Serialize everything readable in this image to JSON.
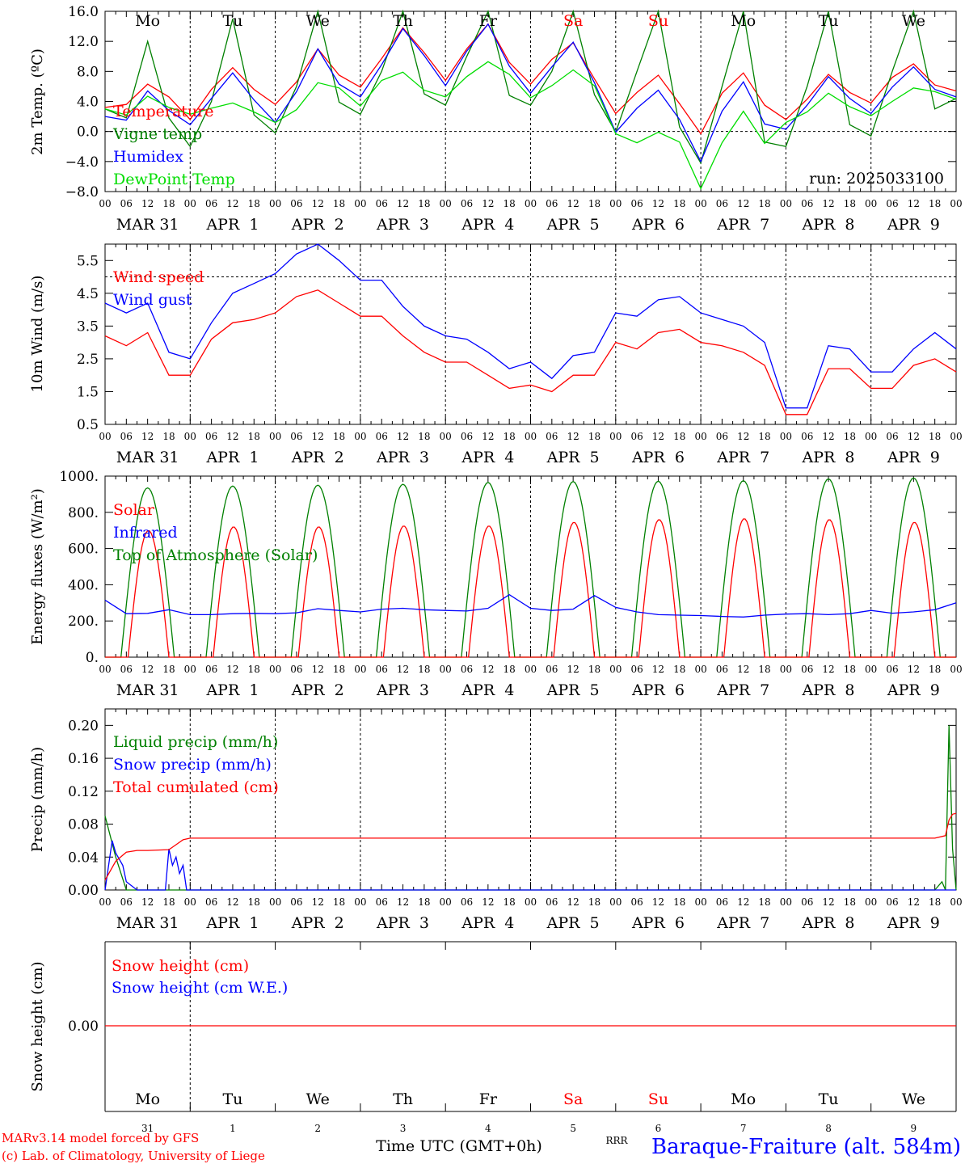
{
  "colors": {
    "red": "#ff0000",
    "green": "#008000",
    "blue": "#0000ff",
    "lightgreen": "#00dd00",
    "black": "#000000"
  },
  "days": [
    "Mo",
    "Tu",
    "We",
    "Th",
    "Fr",
    "Sa",
    "Su",
    "Mo",
    "Tu",
    "We"
  ],
  "day_colors": [
    "black",
    "black",
    "black",
    "black",
    "black",
    "red",
    "red",
    "black",
    "black",
    "black"
  ],
  "date_labels": [
    "MAR 31",
    "APR  1",
    "APR  2",
    "APR  3",
    "APR  4",
    "APR  5",
    "APR  6",
    "APR  7",
    "APR  8",
    "APR  9"
  ],
  "hour_labels": [
    "00",
    "06",
    "12",
    "18"
  ],
  "bottom_day_numbers": [
    "31",
    "1",
    "2",
    "3",
    "4",
    "5",
    "6",
    "7",
    "8",
    "9"
  ],
  "run_label": "run: 2025033100",
  "footer": {
    "model": "MARv3.14 model forced by GFS",
    "copyright": "(c) Lab. of Climatology, University of Liege",
    "xlabel": "Time UTC (GMT+0h)",
    "station": "Baraque-Fraiture (alt. 584m)",
    "overlap": "RRR"
  },
  "chart_data": [
    {
      "type": "line",
      "ylabel": "2m Temp. (ºC)",
      "ylim": [
        -8,
        16
      ],
      "yticks": [
        "16.0",
        "12.0",
        "8.0",
        "4.0",
        "0.0",
        "−4.0",
        "−8.0"
      ],
      "ytick_values": [
        16,
        12,
        8,
        4,
        0,
        -4,
        -8
      ],
      "dashed_reference": 0,
      "x_hours": [
        0,
        6,
        12,
        18,
        24,
        30,
        36,
        42,
        48,
        54,
        60,
        66,
        72,
        78,
        84,
        90,
        96,
        102,
        108,
        114,
        120,
        126,
        132,
        138,
        144,
        150,
        156,
        162,
        168,
        174,
        180,
        186,
        192,
        198,
        204,
        210,
        216,
        222,
        228,
        234,
        240
      ],
      "series": [
        {
          "name": "Temperature",
          "color": "red",
          "values": [
            3.2,
            3.6,
            6.3,
            4.6,
            1.6,
            5.6,
            8.5,
            5.6,
            3.6,
            6.6,
            11.0,
            7.5,
            5.9,
            9.7,
            13.8,
            10.5,
            6.8,
            11.0,
            14.3,
            9.2,
            6.3,
            9.6,
            11.8,
            7.0,
            2.4,
            5.2,
            7.5,
            3.7,
            -0.3,
            5.1,
            7.8,
            3.5,
            1.6,
            4.3,
            7.6,
            5.2,
            3.8,
            7.2,
            9.0,
            6.2,
            5.4
          ]
        },
        {
          "name": "Vigne temp",
          "color": "green",
          "values": [
            3.0,
            1.8,
            12.0,
            1.8,
            -2.0,
            4.0,
            15.0,
            2.2,
            -0.2,
            6.0,
            16.0,
            3.9,
            2.3,
            8.0,
            16.0,
            5.0,
            3.5,
            10.0,
            16.0,
            4.8,
            3.5,
            8.0,
            16.0,
            4.9,
            -0.1,
            8.0,
            16.0,
            0.6,
            -4.2,
            6.0,
            16.0,
            -1.4,
            -2.0,
            6.0,
            16.0,
            0.9,
            -0.6,
            8.0,
            16.0,
            3.0,
            4.4
          ]
        },
        {
          "name": "Humidex",
          "color": "blue",
          "values": [
            2.0,
            1.5,
            5.4,
            2.8,
            0.9,
            4.4,
            7.8,
            4.2,
            1.2,
            5.3,
            11.0,
            6.3,
            4.6,
            8.9,
            13.7,
            10.1,
            6.1,
            10.7,
            14.3,
            8.7,
            5.1,
            8.6,
            11.9,
            6.5,
            -0.1,
            3.1,
            5.5,
            1.6,
            -4.0,
            2.7,
            6.6,
            1.0,
            0.3,
            3.5,
            7.3,
            4.4,
            2.4,
            5.9,
            8.6,
            5.6,
            4.6
          ]
        },
        {
          "name": "DewPoint Temp",
          "color": "lightgreen",
          "values": [
            3.0,
            2.2,
            4.7,
            3.2,
            2.3,
            3.1,
            3.8,
            2.6,
            1.2,
            2.9,
            6.5,
            5.8,
            3.4,
            6.8,
            7.9,
            5.5,
            4.6,
            7.3,
            9.3,
            7.6,
            4.5,
            6.1,
            8.2,
            6.1,
            -0.3,
            -1.5,
            -0.1,
            -1.4,
            -7.6,
            -1.5,
            2.7,
            -1.6,
            1.2,
            2.6,
            5.1,
            3.3,
            2.1,
            4.0,
            5.8,
            5.3,
            4.3
          ]
        }
      ]
    },
    {
      "type": "line",
      "ylabel": "10m Wind (m/s)",
      "ylim": [
        0.5,
        6.0
      ],
      "yticks": [
        "5.5",
        "4.5",
        "3.5",
        "2.5",
        "1.5",
        "0.5"
      ],
      "ytick_values": [
        5.5,
        4.5,
        3.5,
        2.5,
        1.5,
        0.5
      ],
      "dashed_reference": 5.0,
      "x_hours": [
        0,
        6,
        12,
        18,
        24,
        30,
        36,
        42,
        48,
        54,
        60,
        66,
        72,
        78,
        84,
        90,
        96,
        102,
        108,
        114,
        120,
        126,
        132,
        138,
        144,
        150,
        156,
        162,
        168,
        174,
        180,
        186,
        192,
        198,
        204,
        210,
        216,
        222,
        228,
        234,
        240
      ],
      "series": [
        {
          "name": "Wind speed",
          "color": "red",
          "values": [
            3.2,
            2.9,
            3.3,
            2.0,
            2.0,
            3.1,
            3.6,
            3.7,
            3.9,
            4.4,
            4.6,
            4.2,
            3.8,
            3.8,
            3.2,
            2.7,
            2.4,
            2.4,
            2.0,
            1.6,
            1.7,
            1.5,
            2.0,
            2.0,
            3.0,
            2.8,
            3.3,
            3.4,
            3.0,
            2.9,
            2.7,
            2.3,
            0.8,
            0.8,
            2.2,
            2.2,
            1.6,
            1.6,
            2.3,
            2.5,
            2.1
          ]
        },
        {
          "name": "Wind gust",
          "color": "blue",
          "values": [
            4.2,
            3.9,
            4.2,
            2.7,
            2.5,
            3.6,
            4.5,
            4.8,
            5.1,
            5.7,
            6.0,
            5.5,
            4.9,
            4.9,
            4.1,
            3.5,
            3.2,
            3.1,
            2.7,
            2.2,
            2.4,
            1.9,
            2.6,
            2.7,
            3.9,
            3.8,
            4.3,
            4.4,
            3.9,
            3.7,
            3.5,
            3.0,
            1.0,
            1.0,
            2.9,
            2.8,
            2.1,
            2.1,
            2.8,
            3.3,
            2.8
          ]
        }
      ]
    },
    {
      "type": "line",
      "ylabel": "Energy fluxes (W/m²)",
      "ylim": [
        0,
        1000
      ],
      "yticks": [
        "1000.",
        "800.",
        "600.",
        "400.",
        "200.",
        "0."
      ],
      "ytick_values": [
        1000,
        800,
        600,
        400,
        200,
        0
      ],
      "solar_peaks": [
        700,
        720,
        720,
        725,
        725,
        745,
        760,
        765,
        760,
        745
      ],
      "toa_peaks": [
        935,
        945,
        950,
        955,
        965,
        970,
        972,
        975,
        985,
        990
      ],
      "series": [
        {
          "name": "Solar",
          "color": "red"
        },
        {
          "name": "Infrared",
          "color": "blue",
          "x_hours": [
            0,
            6,
            12,
            18,
            24,
            30,
            36,
            42,
            48,
            54,
            60,
            66,
            72,
            78,
            84,
            90,
            96,
            102,
            108,
            114,
            120,
            126,
            132,
            138,
            144,
            150,
            156,
            162,
            168,
            174,
            180,
            186,
            192,
            198,
            204,
            210,
            216,
            222,
            228,
            234,
            240
          ],
          "values": [
            315,
            240,
            242,
            262,
            235,
            235,
            240,
            242,
            240,
            245,
            268,
            258,
            250,
            265,
            270,
            262,
            258,
            255,
            270,
            345,
            270,
            258,
            265,
            340,
            275,
            250,
            235,
            232,
            230,
            225,
            222,
            232,
            238,
            240,
            235,
            240,
            258,
            243,
            250,
            262,
            300
          ]
        },
        {
          "name": "Top of Atmosphere (Solar)",
          "color": "green"
        }
      ]
    },
    {
      "type": "line",
      "ylabel": "Precip (mm/h)",
      "ylim": [
        0,
        0.22
      ],
      "yticks": [
        "0.20",
        "0.16",
        "0.12",
        "0.08",
        "0.04",
        "0.00"
      ],
      "ytick_values": [
        0.2,
        0.16,
        0.12,
        0.08,
        0.04,
        0.0
      ],
      "series": [
        {
          "name": "Liquid precip (mm/h)",
          "color": "green",
          "x_hours": [
            0,
            3,
            6,
            9,
            12,
            234,
            236,
            237,
            238,
            239,
            240
          ],
          "values": [
            0.09,
            0.04,
            0.0,
            0.0,
            0.0,
            0.0,
            0.01,
            0.0,
            0.2,
            0.05,
            0.0
          ]
        },
        {
          "name": "Snow precip (mm/h)",
          "color": "blue",
          "x_hours": [
            0,
            2,
            3,
            5,
            6,
            9,
            12,
            17,
            18,
            19,
            20,
            21,
            22,
            23,
            24,
            240
          ],
          "values": [
            0.0,
            0.06,
            0.045,
            0.03,
            0.01,
            0.0,
            0.0,
            0.0,
            0.05,
            0.03,
            0.04,
            0.02,
            0.03,
            0.0,
            0.0,
            0.0
          ]
        },
        {
          "name": "Total cumulated (cm)",
          "color": "red",
          "x_hours": [
            0,
            3,
            6,
            9,
            12,
            18,
            20,
            22,
            24,
            234,
            237,
            238,
            239,
            240
          ],
          "values": [
            0.012,
            0.035,
            0.046,
            0.048,
            0.048,
            0.049,
            0.055,
            0.061,
            0.063,
            0.063,
            0.066,
            0.085,
            0.092,
            0.093
          ]
        }
      ]
    },
    {
      "type": "line",
      "ylabel": "Snow height (cm)",
      "yticks": [
        "0.00"
      ],
      "series": [
        {
          "name": "Snow height (cm)",
          "color": "red",
          "values": [
            0,
            0
          ]
        },
        {
          "name": "Snow height (cm W.E.)",
          "color": "blue",
          "values": [
            0,
            0
          ]
        }
      ]
    }
  ]
}
